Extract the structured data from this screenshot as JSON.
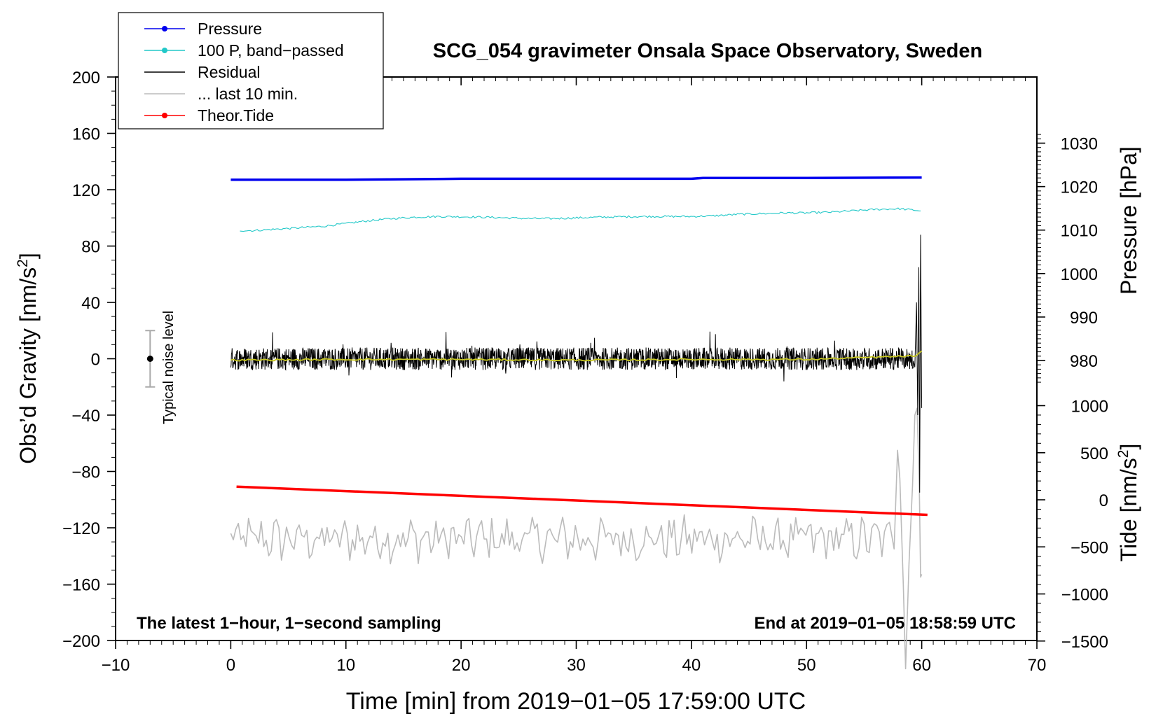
{
  "chart_data": {
    "type": "line",
    "title": "SCG_054 gravimeter Onsala Space Observatory, Sweden",
    "xlabel": "Time [min] from 2019−01−05 17:59:00 UTC",
    "ylabel": "Obs’d Gravity [nm/s",
    "ylabel_sup": "2",
    "ylabel_close": "]",
    "pressure_label": "Pressure [hPa]",
    "tide_label": "Tide [nm/s",
    "tide_label_sup": "2",
    "tide_label_close": "]",
    "xlim": [
      -10,
      70
    ],
    "ylim": [
      -200,
      200
    ],
    "pressure_lim": [
      970,
      1032
    ],
    "tide_lim": [
      -1500,
      1500
    ],
    "x_ticks": [
      -10,
      0,
      10,
      20,
      30,
      40,
      50,
      60,
      70
    ],
    "x_tick_labels": [
      "−10",
      "0",
      "10",
      "20",
      "30",
      "40",
      "50",
      "60",
      "70"
    ],
    "y_ticks": [
      -200,
      -160,
      -120,
      -80,
      -40,
      0,
      40,
      80,
      120,
      160,
      200
    ],
    "y_tick_labels": [
      "−200",
      "−160",
      "−120",
      "−80",
      "−40",
      "0",
      "40",
      "80",
      "120",
      "160",
      "200"
    ],
    "pressure_ticks": [
      980,
      990,
      1000,
      1010,
      1020,
      1030
    ],
    "pressure_tick_labels": [
      "980",
      "990",
      "1000",
      "1010",
      "1020",
      "1030"
    ],
    "tide_ticks": [
      -1500,
      -1000,
      -500,
      0,
      500,
      1000
    ],
    "tide_tick_labels": [
      "−1500",
      "−1000",
      "−500",
      "0",
      "500",
      "1000"
    ],
    "legend": [
      {
        "label": "Pressure",
        "color": "#0000ee",
        "marker": true
      },
      {
        "label": "100 P, band−passed",
        "color": "#22c8c8",
        "marker": true
      },
      {
        "label": "Residual",
        "color": "#000000",
        "marker": false
      },
      {
        "label": "... last 10 min.",
        "color": "#bbbbbb",
        "marker": false
      },
      {
        "label": "Theor.Tide",
        "color": "#ff0000",
        "marker": true
      }
    ],
    "legend_position": "top-left",
    "annotations": {
      "bottom_left": "The latest 1−hour, 1−second sampling",
      "bottom_right": "End at 2019−01−05 18:58:59 UTC",
      "noise": "Typical noise level"
    },
    "noise_bar": {
      "x": -7,
      "center": 0,
      "low": -20,
      "high": 20
    },
    "series": [
      {
        "name": "Pressure",
        "axis": "pressure",
        "color": "#0000ee",
        "x": [
          0,
          10,
          20,
          30,
          40,
          41,
          50,
          60
        ],
        "values": [
          1021.6,
          1021.6,
          1021.8,
          1021.8,
          1021.8,
          1022.0,
          1022.0,
          1022.1
        ]
      },
      {
        "name": "100 P, band-passed",
        "axis": "gravity",
        "color": "#22c8c8",
        "x": [
          0,
          2,
          4,
          6,
          8,
          10,
          12,
          14,
          16,
          18,
          20,
          22,
          24,
          26,
          28,
          30,
          32,
          34,
          36,
          38,
          40,
          42,
          44,
          46,
          48,
          50,
          52,
          54,
          56,
          58,
          60
        ],
        "values": [
          91,
          91,
          92,
          93,
          94,
          96,
          98,
          99.5,
          100.5,
          101,
          100.8,
          100.5,
          100,
          99.5,
          99.5,
          100,
          100.5,
          100.8,
          101,
          101,
          101,
          101.5,
          102.5,
          103,
          103.5,
          103.5,
          104,
          105,
          106,
          106.5,
          105
        ]
      },
      {
        "name": "Residual",
        "axis": "gravity",
        "color": "#000000",
        "x": [
          0,
          60
        ],
        "values": [
          0,
          0
        ]
      },
      {
        "name": "Residual smoothed",
        "axis": "gravity",
        "color": "#c8c820",
        "x": [
          0,
          10,
          20,
          30,
          40,
          50,
          59.5,
          60
        ],
        "values": [
          -1,
          -0.5,
          -0.5,
          -1,
          -0.5,
          -0.5,
          2,
          5
        ]
      },
      {
        "name": "... last 10 min.",
        "axis": "gravity",
        "color": "#bbbbbb",
        "x": [
          0,
          58
        ],
        "values": [
          -128,
          -128
        ]
      },
      {
        "name": "Theor.Tide",
        "axis": "tide",
        "color": "#ff0000",
        "x": [
          0.5,
          60.5
        ],
        "values": [
          140,
          -160
        ]
      }
    ]
  }
}
